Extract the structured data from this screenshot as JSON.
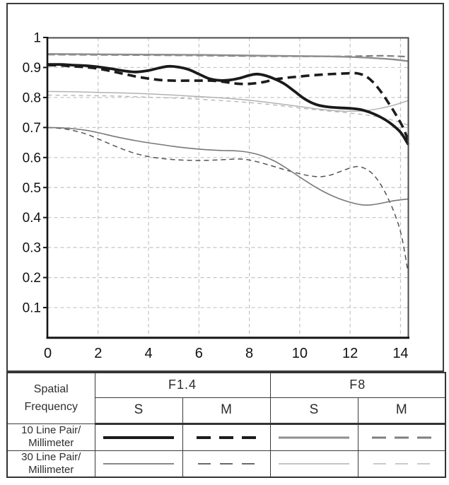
{
  "chart_data": {
    "type": "line",
    "title": "",
    "xlabel": "",
    "ylabel": "",
    "xlim": [
      0,
      14.31
    ],
    "ylim": [
      0,
      1
    ],
    "grid": {
      "visible": true,
      "style": "dashed",
      "color": "#c4c4c4",
      "h_step": 0.1,
      "v_step": 2
    },
    "legend_position": "table-below",
    "xticks": [
      0,
      2,
      4,
      6,
      8,
      10,
      12,
      14
    ],
    "xtick_labels": [
      "0",
      "2",
      "4",
      "6",
      "8",
      "10",
      "12",
      "14"
    ],
    "ytick_values": [
      1,
      0.9,
      0.8,
      0.7,
      0.6,
      0.5,
      0.4,
      0.3,
      0.2,
      0.1
    ],
    "ytick_labels": [
      "1",
      "0.9",
      "0.8",
      "0.7",
      "0.6",
      "0.5",
      "0.4",
      "0.3",
      "0.2",
      "0.1"
    ],
    "axis_color": "#151515",
    "box_color": "#4a4a4a",
    "series": [
      {
        "id": "f8_30_m",
        "aperture": "F8",
        "frequency": "30 Line Pair/Millimeter",
        "orientation": "M",
        "color": "#b8b8b8",
        "width": 1.4,
        "dash": [
          6,
          5
        ],
        "legend": {
          "len": 80,
          "width": 1.4,
          "dash": [
            18,
            13
          ]
        },
        "points": [
          [
            0,
            0.808
          ],
          [
            1,
            0.807
          ],
          [
            2,
            0.806
          ],
          [
            3,
            0.804
          ],
          [
            4,
            0.801
          ],
          [
            5,
            0.798
          ],
          [
            6,
            0.794
          ],
          [
            7,
            0.789
          ],
          [
            8,
            0.783
          ],
          [
            9,
            0.775
          ],
          [
            10,
            0.765
          ],
          [
            11,
            0.756
          ],
          [
            12,
            0.748
          ],
          [
            12.6,
            0.742
          ],
          [
            13.2,
            0.734
          ],
          [
            13.8,
            0.722
          ],
          [
            14.31,
            0.708
          ]
        ]
      },
      {
        "id": "f8_30_s",
        "aperture": "F8",
        "frequency": "30 Line Pair/Millimeter",
        "orientation": "S",
        "color": "#b2b2b2",
        "width": 1.5,
        "dash": null,
        "legend": {
          "len": 100,
          "width": 1.4,
          "dash": null
        },
        "points": [
          [
            0,
            0.82
          ],
          [
            1,
            0.819
          ],
          [
            2,
            0.817
          ],
          [
            3,
            0.815
          ],
          [
            4,
            0.812
          ],
          [
            5,
            0.808
          ],
          [
            6,
            0.803
          ],
          [
            7,
            0.798
          ],
          [
            8,
            0.791
          ],
          [
            9,
            0.781
          ],
          [
            10,
            0.77
          ],
          [
            10.7,
            0.762
          ],
          [
            11.4,
            0.756
          ],
          [
            12,
            0.754
          ],
          [
            12.6,
            0.756
          ],
          [
            13.2,
            0.764
          ],
          [
            13.8,
            0.776
          ],
          [
            14.31,
            0.79
          ]
        ]
      },
      {
        "id": "f8_10_m",
        "aperture": "F8",
        "frequency": "10 Line Pair/Millimeter",
        "orientation": "M",
        "color": "#7f7f7f",
        "width": 2.2,
        "dash": [
          10,
          5
        ],
        "legend": {
          "len": 84,
          "width": 3,
          "dash": [
            20,
            12
          ]
        },
        "points": [
          [
            0,
            0.943
          ],
          [
            2,
            0.942
          ],
          [
            4,
            0.941
          ],
          [
            6,
            0.94
          ],
          [
            8,
            0.938
          ],
          [
            10,
            0.937
          ],
          [
            11.5,
            0.937
          ],
          [
            12.5,
            0.938
          ],
          [
            13.3,
            0.939
          ],
          [
            14.31,
            0.936
          ]
        ]
      },
      {
        "id": "f8_10_s",
        "aperture": "F8",
        "frequency": "10 Line Pair/Millimeter",
        "orientation": "S",
        "color": "#8e8e8e",
        "width": 2.4,
        "dash": null,
        "legend": {
          "len": 100,
          "width": 3,
          "dash": null
        },
        "points": [
          [
            0,
            0.945
          ],
          [
            2,
            0.944
          ],
          [
            4,
            0.943
          ],
          [
            6,
            0.942
          ],
          [
            8,
            0.94
          ],
          [
            10,
            0.938
          ],
          [
            11,
            0.937
          ],
          [
            12,
            0.935
          ],
          [
            13,
            0.931
          ],
          [
            13.7,
            0.927
          ],
          [
            14.31,
            0.921
          ]
        ]
      },
      {
        "id": "f14_30_m",
        "aperture": "F1.4",
        "frequency": "30 Line Pair/Millimeter",
        "orientation": "M",
        "color": "#555555",
        "width": 1.5,
        "dash": [
          7,
          5
        ],
        "legend": {
          "len": 80,
          "width": 1.7,
          "dash": [
            18,
            13
          ]
        },
        "points": [
          [
            0,
            0.7
          ],
          [
            0.5,
            0.697
          ],
          [
            1,
            0.69
          ],
          [
            1.5,
            0.679
          ],
          [
            2,
            0.662
          ],
          [
            2.5,
            0.644
          ],
          [
            3,
            0.627
          ],
          [
            3.5,
            0.613
          ],
          [
            4,
            0.603
          ],
          [
            4.5,
            0.597
          ],
          [
            5,
            0.593
          ],
          [
            5.5,
            0.591
          ],
          [
            6,
            0.59
          ],
          [
            6.5,
            0.591
          ],
          [
            7,
            0.593
          ],
          [
            7.5,
            0.595
          ],
          [
            7.9,
            0.593
          ],
          [
            8.3,
            0.586
          ],
          [
            8.7,
            0.577
          ],
          [
            9.1,
            0.567
          ],
          [
            9.5,
            0.557
          ],
          [
            10,
            0.546
          ],
          [
            10.4,
            0.539
          ],
          [
            10.8,
            0.536
          ],
          [
            11.2,
            0.541
          ],
          [
            11.6,
            0.553
          ],
          [
            12,
            0.565
          ],
          [
            12.3,
            0.57
          ],
          [
            12.6,
            0.563
          ],
          [
            12.9,
            0.545
          ],
          [
            13.2,
            0.512
          ],
          [
            13.5,
            0.465
          ],
          [
            13.8,
            0.405
          ],
          [
            14.05,
            0.335
          ],
          [
            14.31,
            0.212
          ]
        ]
      },
      {
        "id": "f14_30_s",
        "aperture": "F1.4",
        "frequency": "30 Line Pair/Millimeter",
        "orientation": "S",
        "color": "#787878",
        "width": 1.6,
        "dash": null,
        "legend": {
          "len": 100,
          "width": 1.7,
          "dash": null
        },
        "points": [
          [
            0,
            0.7
          ],
          [
            0.5,
            0.699
          ],
          [
            1,
            0.696
          ],
          [
            1.5,
            0.691
          ],
          [
            2,
            0.683
          ],
          [
            2.5,
            0.673
          ],
          [
            3,
            0.664
          ],
          [
            3.5,
            0.656
          ],
          [
            4,
            0.649
          ],
          [
            4.5,
            0.643
          ],
          [
            5,
            0.637
          ],
          [
            5.5,
            0.632
          ],
          [
            6,
            0.628
          ],
          [
            6.5,
            0.625
          ],
          [
            7,
            0.623
          ],
          [
            7.5,
            0.622
          ],
          [
            8,
            0.617
          ],
          [
            8.5,
            0.606
          ],
          [
            9,
            0.588
          ],
          [
            9.5,
            0.563
          ],
          [
            10,
            0.535
          ],
          [
            10.5,
            0.508
          ],
          [
            11,
            0.484
          ],
          [
            11.5,
            0.465
          ],
          [
            12,
            0.451
          ],
          [
            12.4,
            0.443
          ],
          [
            12.8,
            0.442
          ],
          [
            13.2,
            0.447
          ],
          [
            13.6,
            0.454
          ],
          [
            14,
            0.459
          ],
          [
            14.31,
            0.462
          ]
        ]
      },
      {
        "id": "f14_10_m",
        "aperture": "F1.4",
        "frequency": "10 Line Pair/Millimeter",
        "orientation": "M",
        "color": "#1c1c1c",
        "width": 3.6,
        "dash": [
          12,
          7
        ],
        "legend": {
          "len": 84,
          "width": 4,
          "dash": [
            20,
            12
          ]
        },
        "points": [
          [
            0,
            0.908
          ],
          [
            0.5,
            0.907
          ],
          [
            1,
            0.904
          ],
          [
            1.5,
            0.901
          ],
          [
            2,
            0.896
          ],
          [
            2.5,
            0.888
          ],
          [
            3,
            0.879
          ],
          [
            3.5,
            0.87
          ],
          [
            4,
            0.863
          ],
          [
            4.5,
            0.858
          ],
          [
            5,
            0.856
          ],
          [
            5.5,
            0.856
          ],
          [
            6,
            0.856
          ],
          [
            6.5,
            0.856
          ],
          [
            7,
            0.852
          ],
          [
            7.4,
            0.847
          ],
          [
            7.8,
            0.845
          ],
          [
            8.2,
            0.847
          ],
          [
            8.6,
            0.852
          ],
          [
            9,
            0.86
          ],
          [
            9.5,
            0.866
          ],
          [
            10,
            0.87
          ],
          [
            10.5,
            0.874
          ],
          [
            11,
            0.877
          ],
          [
            11.5,
            0.879
          ],
          [
            12,
            0.881
          ],
          [
            12.3,
            0.88
          ],
          [
            12.6,
            0.872
          ],
          [
            12.9,
            0.852
          ],
          [
            13.2,
            0.822
          ],
          [
            13.5,
            0.785
          ],
          [
            13.8,
            0.745
          ],
          [
            14.1,
            0.7
          ],
          [
            14.31,
            0.655
          ]
        ]
      },
      {
        "id": "f14_10_s",
        "aperture": "F1.4",
        "frequency": "10 Line Pair/Millimeter",
        "orientation": "S",
        "color": "#1a1a1a",
        "width": 3.8,
        "dash": null,
        "legend": {
          "len": 100,
          "width": 4,
          "dash": null
        },
        "points": [
          [
            0,
            0.91
          ],
          [
            0.5,
            0.91
          ],
          [
            1,
            0.908
          ],
          [
            1.5,
            0.906
          ],
          [
            2,
            0.902
          ],
          [
            2.5,
            0.896
          ],
          [
            3,
            0.889
          ],
          [
            3.5,
            0.885
          ],
          [
            4,
            0.89
          ],
          [
            4.4,
            0.898
          ],
          [
            4.8,
            0.904
          ],
          [
            5.2,
            0.901
          ],
          [
            5.6,
            0.893
          ],
          [
            6,
            0.878
          ],
          [
            6.4,
            0.863
          ],
          [
            6.8,
            0.857
          ],
          [
            7.2,
            0.858
          ],
          [
            7.6,
            0.864
          ],
          [
            8,
            0.874
          ],
          [
            8.3,
            0.878
          ],
          [
            8.6,
            0.874
          ],
          [
            9,
            0.862
          ],
          [
            9.4,
            0.845
          ],
          [
            9.8,
            0.82
          ],
          [
            10.2,
            0.795
          ],
          [
            10.6,
            0.778
          ],
          [
            11,
            0.77
          ],
          [
            11.5,
            0.766
          ],
          [
            12,
            0.764
          ],
          [
            12.4,
            0.76
          ],
          [
            12.8,
            0.75
          ],
          [
            13.2,
            0.735
          ],
          [
            13.6,
            0.714
          ],
          [
            14,
            0.684
          ],
          [
            14.31,
            0.643
          ]
        ]
      }
    ]
  },
  "table": {
    "corner_line1": "Spatial",
    "corner_line2": "Frequency",
    "col_groups": [
      "F1.4",
      "F8"
    ],
    "sub_headers": [
      "S",
      "M",
      "S",
      "M"
    ],
    "rows": [
      {
        "label_line1": "10 Line Pair/",
        "label_line2": "Millimeter",
        "samples": [
          "f14_10_s",
          "f14_10_m",
          "f8_10_s",
          "f8_10_m"
        ]
      },
      {
        "label_line1": "30 Line Pair/",
        "label_line2": "Millimeter",
        "samples": [
          "f14_30_s",
          "f14_30_m",
          "f8_30_s",
          "f8_30_m"
        ]
      }
    ]
  }
}
